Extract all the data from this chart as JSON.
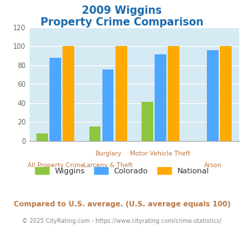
{
  "title_line1": "2009 Wiggins",
  "title_line2": "Property Crime Comparison",
  "category_labels_top": [
    "",
    "Burglary",
    "Motor Vehicle Theft",
    ""
  ],
  "category_labels_bottom": [
    "All Property Crime",
    "Larceny & Theft",
    "",
    "Arson"
  ],
  "wiggins": [
    8,
    15,
    41,
    0
  ],
  "colorado": [
    88,
    75,
    91,
    96
  ],
  "national": [
    100,
    100,
    100,
    100
  ],
  "wiggins_color": "#8dc63f",
  "colorado_color": "#4da6ff",
  "national_color": "#ffaa00",
  "ylim": [
    0,
    120
  ],
  "yticks": [
    0,
    20,
    40,
    60,
    80,
    100,
    120
  ],
  "background_color": "#d6eaf3",
  "title_color": "#1a6aad",
  "axis_label_color": "#bb7744",
  "footer_text": "Compared to U.S. average. (U.S. average equals 100)",
  "copyright_text": "© 2025 CityRating.com - https://www.cityrating.com/crime-statistics/",
  "legend_labels": [
    "Wiggins",
    "Colorado",
    "National"
  ]
}
